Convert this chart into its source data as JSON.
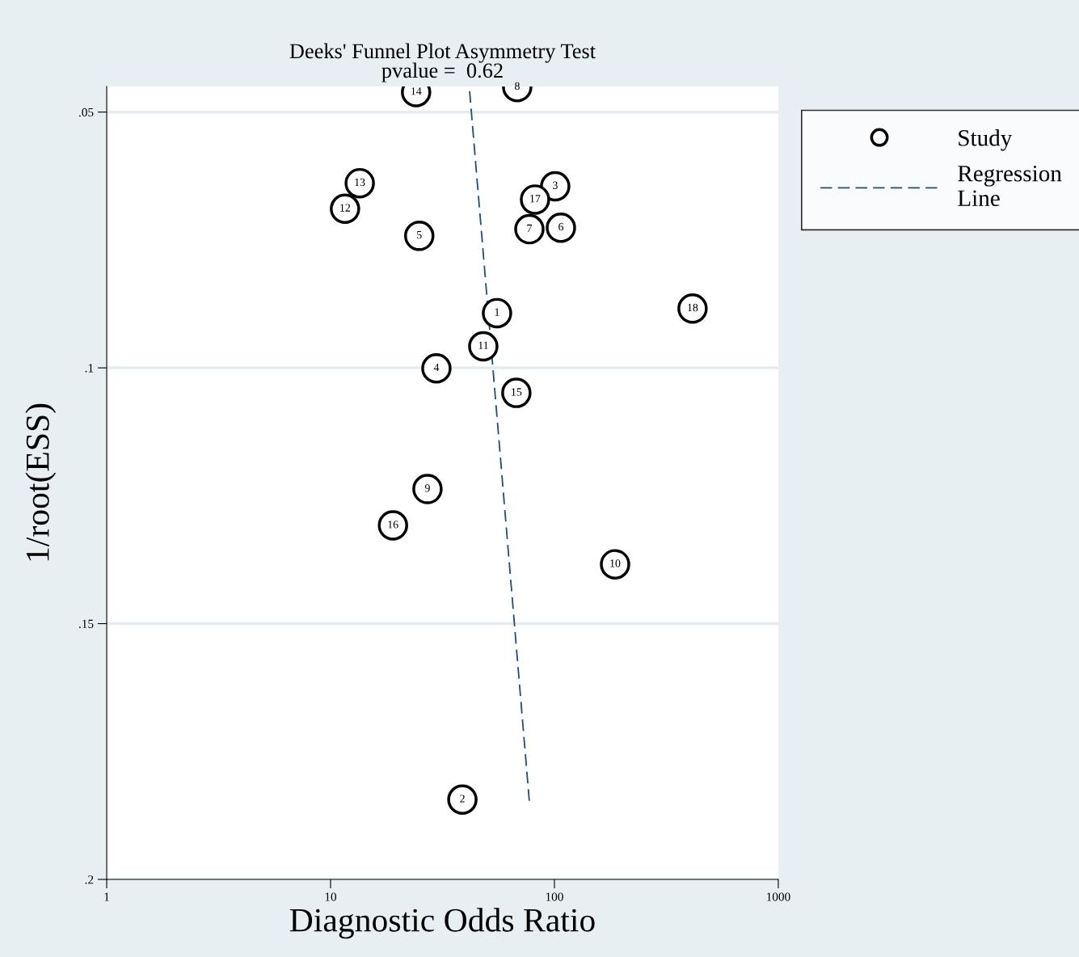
{
  "chart_data": {
    "type": "scatter",
    "title": "Deeks' Funnel Plot Asymmetry Test",
    "subtitle": "pvalue =  0.62",
    "xlabel": "Diagnostic Odds Ratio",
    "ylabel": "1/root(ESS)",
    "log": "x",
    "xlim": [
      1,
      1000
    ],
    "xticks": [
      1,
      10,
      100,
      1000
    ],
    "ylim": [
      0.2,
      0.045
    ],
    "yticks": [
      {
        "value": 0.05,
        "label": ".05"
      },
      {
        "value": 0.1,
        "label": ".1"
      },
      {
        "value": 0.15,
        "label": ".15"
      },
      {
        "value": 0.2,
        "label": ".2"
      }
    ],
    "grid": "y",
    "legend": "top right",
    "series": [
      {
        "name": "Study",
        "type": "scatter",
        "marker": "circle",
        "color": "#000000",
        "x": [
          24.1,
          68.2,
          13.5,
          11.6,
          24.9,
          100.8,
          81.9,
          77.3,
          106.9,
          55.4,
          414,
          48.1,
          29.7,
          67.6,
          27.1,
          19.0,
          186.6,
          38.8
        ],
        "values": [
          0.0461,
          0.0451,
          0.0639,
          0.0689,
          0.0742,
          0.0645,
          0.0671,
          0.0729,
          0.0726,
          0.0893,
          0.0884,
          0.0958,
          0.1001,
          0.1049,
          0.1237,
          0.1308,
          0.1384,
          0.1844
        ]
      },
      {
        "name": "Regression Line",
        "type": "line",
        "line_style": "dashed",
        "color": "#1f4e79",
        "x": [
          41.8,
          77.3
        ],
        "values": [
          0.0459,
          0.1849
        ]
      }
    ],
    "annotations": [
      {
        "text": "14",
        "x": 24.1,
        "y": 0.0461
      },
      {
        "text": "8",
        "x": 68.2,
        "y": 0.0451
      },
      {
        "text": "13",
        "x": 13.5,
        "y": 0.0639
      },
      {
        "text": "12",
        "x": 11.6,
        "y": 0.0689
      },
      {
        "text": "5",
        "x": 24.9,
        "y": 0.0742
      },
      {
        "text": "3",
        "x": 100.8,
        "y": 0.0645
      },
      {
        "text": "17",
        "x": 81.9,
        "y": 0.0671
      },
      {
        "text": "7",
        "x": 77.3,
        "y": 0.0729
      },
      {
        "text": "6",
        "x": 106.9,
        "y": 0.0726
      },
      {
        "text": "1",
        "x": 55.4,
        "y": 0.0893
      },
      {
        "text": "18",
        "x": 414,
        "y": 0.0884
      },
      {
        "text": "11",
        "x": 48.1,
        "y": 0.0958
      },
      {
        "text": "4",
        "x": 29.7,
        "y": 0.1001
      },
      {
        "text": "15",
        "x": 67.6,
        "y": 0.1049
      },
      {
        "text": "9",
        "x": 27.1,
        "y": 0.1237
      },
      {
        "text": "16",
        "x": 19.0,
        "y": 0.1308
      },
      {
        "text": "10",
        "x": 186.6,
        "y": 0.1384
      },
      {
        "text": "2",
        "x": 38.8,
        "y": 0.1844
      }
    ]
  }
}
